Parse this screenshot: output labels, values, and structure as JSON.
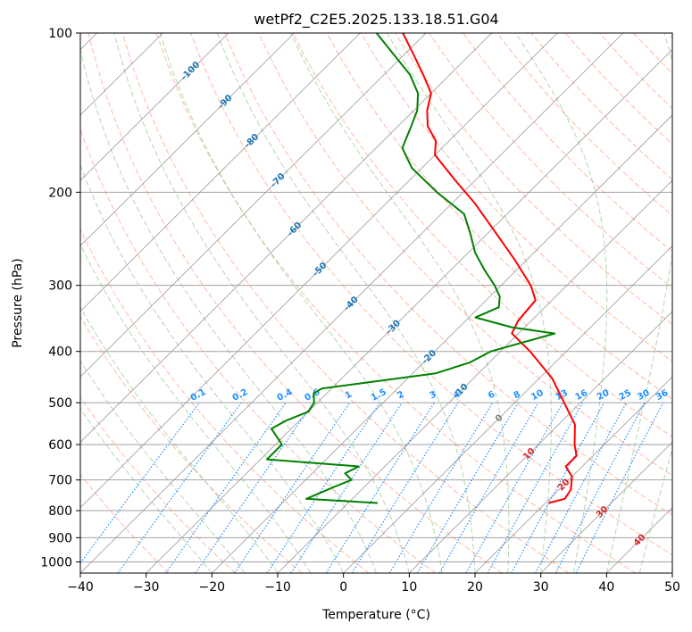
{
  "chart_data": {
    "type": "line",
    "title": "wetPf2_C2E5.2025.133.18.51.G04",
    "xlabel": "Temperature (°C)",
    "ylabel": "Pressure (hPa)",
    "xlim": [
      -40,
      50
    ],
    "ylim": [
      1050,
      100
    ],
    "y_scale": "log",
    "x_ticks": [
      "−40",
      "−30",
      "−20",
      "−10",
      "0",
      "10",
      "20",
      "30",
      "40",
      "50"
    ],
    "y_ticks": [
      100,
      200,
      300,
      400,
      500,
      600,
      700,
      800,
      900,
      1000
    ],
    "grid": true,
    "series": [
      {
        "color": "#ff0000",
        "points": [
          {
            "p": 774,
            "t": 20.5
          },
          {
            "p": 760,
            "t": 22.3
          },
          {
            "p": 730,
            "t": 21.8
          },
          {
            "p": 690,
            "t": 20.0
          },
          {
            "p": 660,
            "t": 17.5
          },
          {
            "p": 630,
            "t": 17.5
          },
          {
            "p": 600,
            "t": 15.5
          },
          {
            "p": 550,
            "t": 12.5
          },
          {
            "p": 500,
            "t": 7.5
          },
          {
            "p": 450,
            "t": 2.0
          },
          {
            "p": 400,
            "t": -5.5
          },
          {
            "p": 370,
            "t": -11.0
          },
          {
            "p": 350,
            "t": -12.0
          },
          {
            "p": 320,
            "t": -12.5
          },
          {
            "p": 300,
            "t": -15.5
          },
          {
            "p": 270,
            "t": -21.5
          },
          {
            "p": 240,
            "t": -28.5
          },
          {
            "p": 210,
            "t": -36.5
          },
          {
            "p": 190,
            "t": -43.0
          },
          {
            "p": 170,
            "t": -50.0
          },
          {
            "p": 160,
            "t": -52.0
          },
          {
            "p": 150,
            "t": -55.5
          },
          {
            "p": 140,
            "t": -58.0
          },
          {
            "p": 130,
            "t": -60.0
          },
          {
            "p": 120,
            "t": -64.0
          },
          {
            "p": 110,
            "t": -68.5
          },
          {
            "p": 100,
            "t": -73.5
          }
        ]
      },
      {
        "color": "#008000",
        "points": [
          {
            "p": 774,
            "t": -5.5
          },
          {
            "p": 760,
            "t": -17.0
          },
          {
            "p": 720,
            "t": -14.5
          },
          {
            "p": 700,
            "t": -13.0
          },
          {
            "p": 680,
            "t": -15.0
          },
          {
            "p": 660,
            "t": -14.0
          },
          {
            "p": 640,
            "t": -29.0
          },
          {
            "p": 600,
            "t": -29.0
          },
          {
            "p": 560,
            "t": -33.0
          },
          {
            "p": 540,
            "t": -32.0
          },
          {
            "p": 520,
            "t": -30.0
          },
          {
            "p": 500,
            "t": -30.5
          },
          {
            "p": 480,
            "t": -32.0
          },
          {
            "p": 470,
            "t": -31.5
          },
          {
            "p": 440,
            "t": -16.5
          },
          {
            "p": 420,
            "t": -13.0
          },
          {
            "p": 400,
            "t": -11.5
          },
          {
            "p": 370,
            "t": -4.5
          },
          {
            "p": 360,
            "t": -12.0
          },
          {
            "p": 345,
            "t": -19.0
          },
          {
            "p": 330,
            "t": -17.0
          },
          {
            "p": 315,
            "t": -18.5
          },
          {
            "p": 300,
            "t": -21.0
          },
          {
            "p": 280,
            "t": -25.0
          },
          {
            "p": 260,
            "t": -29.0
          },
          {
            "p": 240,
            "t": -32.5
          },
          {
            "p": 220,
            "t": -36.5
          },
          {
            "p": 200,
            "t": -44.0
          },
          {
            "p": 180,
            "t": -51.5
          },
          {
            "p": 165,
            "t": -56.0
          },
          {
            "p": 150,
            "t": -58.0
          },
          {
            "p": 140,
            "t": -59.5
          },
          {
            "p": 130,
            "t": -62.0
          },
          {
            "p": 120,
            "t": -66.0
          },
          {
            "p": 110,
            "t": -71.5
          },
          {
            "p": 100,
            "t": -77.5
          }
        ]
      }
    ],
    "isotherm_labels": [
      {
        "t": -100,
        "p": 118,
        "text": "-100"
      },
      {
        "t": -90,
        "p": 135,
        "text": "-90"
      },
      {
        "t": -80,
        "p": 160,
        "text": "-80"
      },
      {
        "t": -70,
        "p": 190,
        "text": "-70"
      },
      {
        "t": -60,
        "p": 235,
        "text": "-60"
      },
      {
        "t": -50,
        "p": 280,
        "text": "-50"
      },
      {
        "t": -40,
        "p": 325,
        "text": "-40"
      },
      {
        "t": -30,
        "p": 360,
        "text": "-30"
      },
      {
        "t": -20,
        "p": 410,
        "text": "-20"
      },
      {
        "t": -10,
        "p": 475,
        "text": "-10"
      },
      {
        "t": 0,
        "p": 535,
        "text": "0"
      },
      {
        "t": 10,
        "p": 625,
        "text": "10"
      },
      {
        "t": 20,
        "p": 715,
        "text": "20"
      },
      {
        "t": 30,
        "p": 805,
        "text": "30"
      },
      {
        "t": 40,
        "p": 910,
        "text": "40"
      }
    ],
    "mixing_ratio_labels": [
      "0.1",
      "0.2",
      "0.4",
      "0.6",
      "1",
      "1.5",
      "2",
      "3",
      "4",
      "6",
      "8",
      "10",
      "13",
      "16",
      "20",
      "25",
      "30",
      "36"
    ],
    "colors": {
      "temperature": "#ff0000",
      "dewpoint": "#008000",
      "isotherm": "#808080",
      "dry_adiabat": "#ff8c69",
      "moist_adiabat": "#90c890",
      "mixing_ratio": "#1e90ff",
      "isotherm_label_cold": "#1f77b4",
      "isotherm_label_warm": "#d62728",
      "isotherm_label_zero": "#808080"
    }
  }
}
